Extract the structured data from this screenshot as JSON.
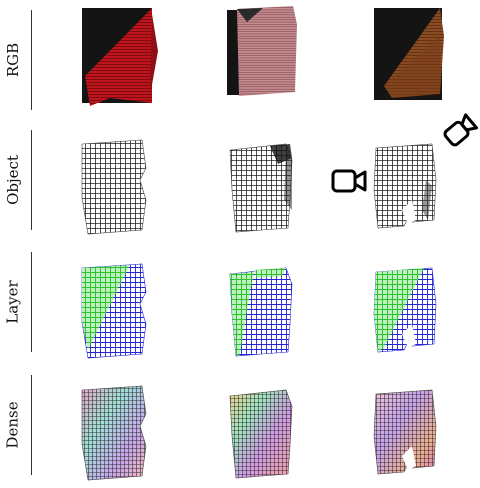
{
  "figure": {
    "rows": [
      {
        "label": "RGB"
      },
      {
        "label": "Object"
      },
      {
        "label": "Layer"
      },
      {
        "label": "Dense"
      }
    ],
    "columns": 3,
    "cloth_colors": {
      "rgb": [
        "#c0141c",
        "#c98e94",
        "#8a4a22"
      ],
      "object": "#1a1a1a",
      "layer_top": "#2a2ad8",
      "layer_bottom": "#33c733"
    },
    "icons": [
      "camera-icon-front",
      "camera-icon-tilted"
    ]
  }
}
